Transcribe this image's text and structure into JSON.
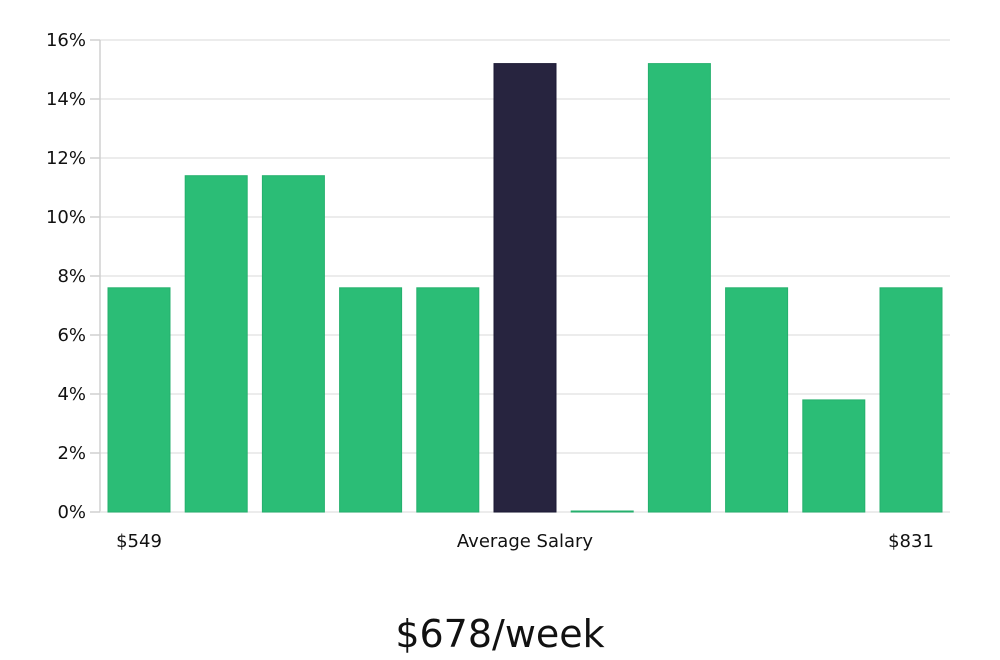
{
  "chart_data": {
    "type": "bar",
    "categories": [
      "$549",
      "",
      "",
      "",
      "",
      "Average Salary",
      "",
      "",
      "",
      "",
      "$831"
    ],
    "values": [
      7.6,
      11.4,
      11.4,
      7.6,
      7.6,
      15.2,
      0,
      15.2,
      7.6,
      3.8,
      7.6
    ],
    "highlight_index": 5,
    "ylim": [
      0,
      16
    ],
    "yticks": [
      0,
      2,
      4,
      6,
      8,
      10,
      12,
      14,
      16
    ],
    "ytick_format": "%",
    "grid": true,
    "x_labels": {
      "left": "$549",
      "center": "Average Salary",
      "right": "$831"
    },
    "colors": {
      "bar": "#2bbd76",
      "highlight": "#27243f",
      "grid": "#e6e6e6",
      "axis": "#d0d0d0"
    }
  },
  "summary": {
    "value_text": "$678/week"
  }
}
